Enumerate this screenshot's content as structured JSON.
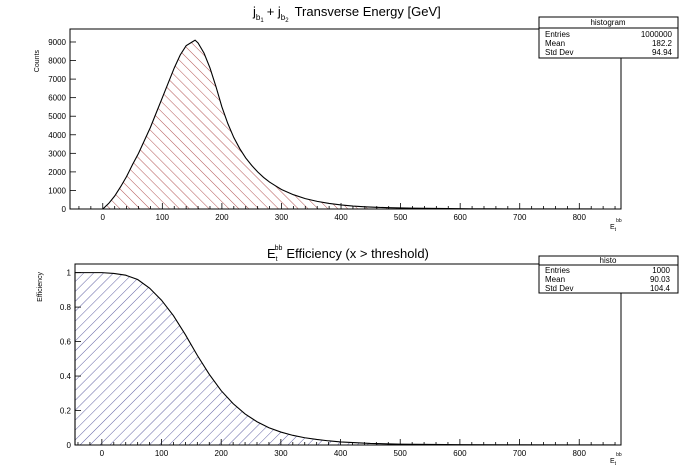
{
  "chart_data": [
    {
      "type": "area",
      "name_key": "top",
      "title": {
        "parts": [
          "j",
          "b",
          "1",
          "+ j",
          "b",
          "2",
          "Transverse Energy [GeV]"
        ]
      },
      "xlabel": {
        "main": "E",
        "sub": "t",
        "sup": "bb"
      },
      "ylabel": "Counts",
      "xlim": [
        -55,
        870
      ],
      "ylim": [
        0,
        9700
      ],
      "xticks": [
        0,
        100,
        200,
        300,
        400,
        500,
        600,
        700,
        800
      ],
      "yticks": [
        0,
        1000,
        2000,
        3000,
        4000,
        5000,
        6000,
        7000,
        8000,
        9000
      ],
      "fill": {
        "color": "#a02828",
        "pattern": "hatch-forward"
      },
      "x": [
        0,
        10,
        20,
        30,
        40,
        50,
        60,
        70,
        80,
        90,
        100,
        110,
        120,
        130,
        140,
        150,
        155,
        160,
        170,
        180,
        190,
        200,
        210,
        220,
        230,
        240,
        250,
        260,
        270,
        280,
        290,
        300,
        320,
        340,
        360,
        380,
        400,
        420,
        440,
        460,
        480,
        500,
        520,
        540,
        560,
        580,
        600,
        620,
        640,
        660,
        680,
        700,
        720,
        740,
        760,
        780,
        800,
        820
      ],
      "y": [
        0,
        300,
        700,
        1200,
        1750,
        2400,
        3000,
        3700,
        4400,
        5200,
        6000,
        6800,
        7600,
        8300,
        8800,
        9000,
        9100,
        8950,
        8400,
        7600,
        6600,
        5500,
        4600,
        3850,
        3250,
        2750,
        2350,
        2000,
        1700,
        1450,
        1250,
        1050,
        770,
        560,
        410,
        300,
        220,
        160,
        120,
        90,
        70,
        55,
        45,
        35,
        28,
        22,
        18,
        14,
        11,
        9,
        7,
        6,
        5,
        4,
        3,
        3,
        2,
        2
      ],
      "stats": {
        "name": "histogram",
        "rows": [
          {
            "label": "Entries",
            "value": "1000000"
          },
          {
            "label": "Mean",
            "value": "182.2"
          },
          {
            "label": "Std Dev",
            "value": "94.94"
          }
        ]
      }
    },
    {
      "type": "area",
      "name_key": "bottom",
      "title": {
        "main": "E",
        "sub": "t",
        "sup": "bb",
        "rest": "Efficiency (x > threshold)"
      },
      "xlabel": {
        "main": "E",
        "sub": "t",
        "sup": "bb"
      },
      "ylabel": "Efficiency",
      "xlim": [
        -45,
        870
      ],
      "ylim": [
        0,
        1.05
      ],
      "xticks": [
        0,
        100,
        200,
        300,
        400,
        500,
        600,
        700,
        800
      ],
      "yticks": [
        0,
        0.2,
        0.4,
        0.6,
        0.8,
        1
      ],
      "yticklabels": [
        "0",
        "0.2",
        "0.4",
        "0.6",
        "0.8",
        "1"
      ],
      "fill": {
        "color": "#3a3a8c",
        "pattern": "hatch-backward"
      },
      "x": [
        -45,
        0,
        20,
        40,
        60,
        80,
        100,
        120,
        140,
        160,
        180,
        200,
        220,
        240,
        260,
        280,
        300,
        320,
        340,
        360,
        380,
        400,
        450,
        500,
        550,
        600,
        700,
        800,
        860
      ],
      "y": [
        1,
        1,
        0.995,
        0.985,
        0.96,
        0.91,
        0.84,
        0.75,
        0.64,
        0.52,
        0.41,
        0.315,
        0.24,
        0.18,
        0.135,
        0.1,
        0.075,
        0.056,
        0.042,
        0.032,
        0.024,
        0.018,
        0.009,
        0.005,
        0.003,
        0.002,
        0.001,
        0.0005,
        0.0002
      ],
      "stats": {
        "name": "histo",
        "rows": [
          {
            "label": "Entries",
            "value": "1000"
          },
          {
            "label": "Mean",
            "value": "90.03"
          },
          {
            "label": "Std Dev",
            "value": "104.4"
          }
        ]
      }
    }
  ]
}
